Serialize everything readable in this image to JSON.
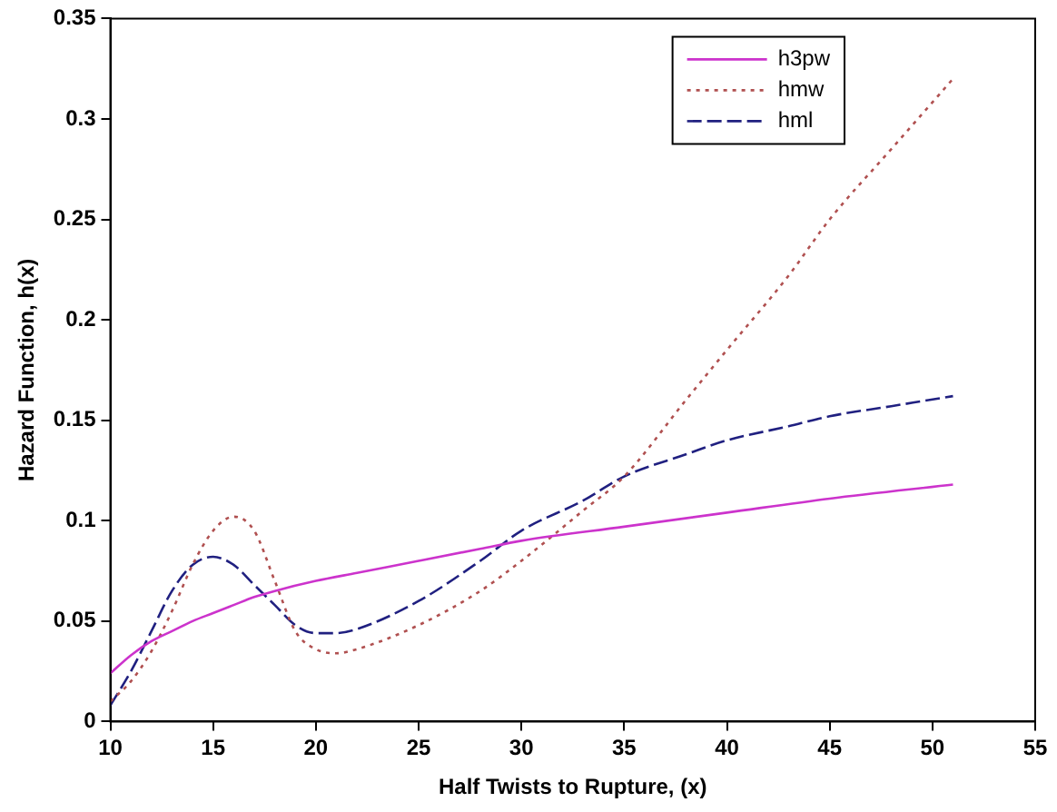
{
  "chart_data": {
    "type": "line",
    "xlabel": "Half Twists to Rupture, (x)",
    "ylabel": "Hazard Function, h(x)",
    "xlim": [
      10,
      55
    ],
    "xticks": [
      10,
      15,
      20,
      25,
      30,
      35,
      40,
      45,
      50,
      55
    ],
    "ylim": [
      0,
      0.35
    ],
    "yticks": [
      0,
      0.05,
      0.1,
      0.15,
      0.2,
      0.25,
      0.3,
      0.35
    ],
    "grid": false,
    "legend": "top right",
    "marker": "none",
    "series": [
      {
        "name": "h3pw",
        "color": "#cc33cc",
        "line_style": "solid",
        "x": [
          10,
          11,
          12,
          13,
          14,
          15,
          16,
          17,
          18,
          20,
          22,
          25,
          28,
          30,
          35,
          40,
          45,
          51
        ],
        "values": [
          0.024,
          0.033,
          0.04,
          0.045,
          0.05,
          0.054,
          0.058,
          0.062,
          0.065,
          0.07,
          0.074,
          0.08,
          0.086,
          0.09,
          0.097,
          0.104,
          0.111,
          0.118
        ]
      },
      {
        "name": "hmw",
        "color": "#b05050",
        "line_style": "dotted",
        "x": [
          10,
          11,
          12,
          13,
          14,
          15,
          16,
          17,
          18,
          19,
          20,
          21,
          22,
          25,
          28,
          30,
          33,
          35,
          38,
          40,
          43,
          45,
          48,
          51
        ],
        "values": [
          0.01,
          0.02,
          0.035,
          0.055,
          0.078,
          0.095,
          0.102,
          0.095,
          0.07,
          0.045,
          0.036,
          0.034,
          0.036,
          0.048,
          0.065,
          0.08,
          0.105,
          0.122,
          0.16,
          0.185,
          0.222,
          0.25,
          0.285,
          0.32
        ]
      },
      {
        "name": "hml",
        "color": "#202080",
        "line_style": "dashed",
        "x": [
          10,
          11,
          12,
          13,
          14,
          15,
          16,
          17,
          18,
          19,
          20,
          21,
          22,
          25,
          28,
          30,
          33,
          35,
          38,
          40,
          43,
          45,
          48,
          51
        ],
        "values": [
          0.008,
          0.025,
          0.045,
          0.065,
          0.078,
          0.082,
          0.078,
          0.068,
          0.058,
          0.048,
          0.044,
          0.044,
          0.046,
          0.06,
          0.08,
          0.095,
          0.11,
          0.122,
          0.133,
          0.14,
          0.147,
          0.152,
          0.157,
          0.162
        ]
      }
    ]
  }
}
